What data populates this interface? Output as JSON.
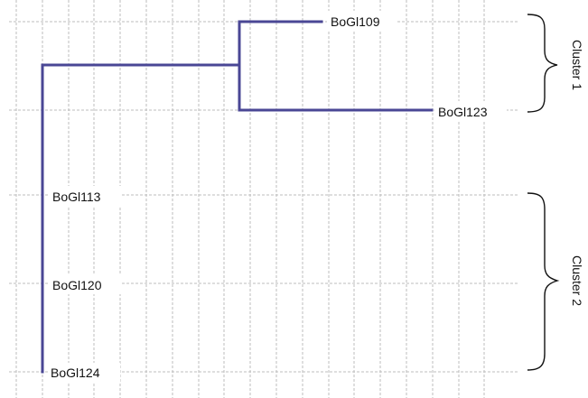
{
  "dendrogram": {
    "leaves": [
      {
        "id": "l1",
        "label": "BoGl109"
      },
      {
        "id": "l2",
        "label": "BoGl123"
      },
      {
        "id": "l3",
        "label": "BoGl113"
      },
      {
        "id": "l4",
        "label": "BoGl120"
      },
      {
        "id": "l5",
        "label": "BoGl124"
      }
    ],
    "clusters": [
      {
        "label": "Cluster 1"
      },
      {
        "label": "Cluster 2"
      }
    ],
    "branch_color": "#4a4795"
  }
}
